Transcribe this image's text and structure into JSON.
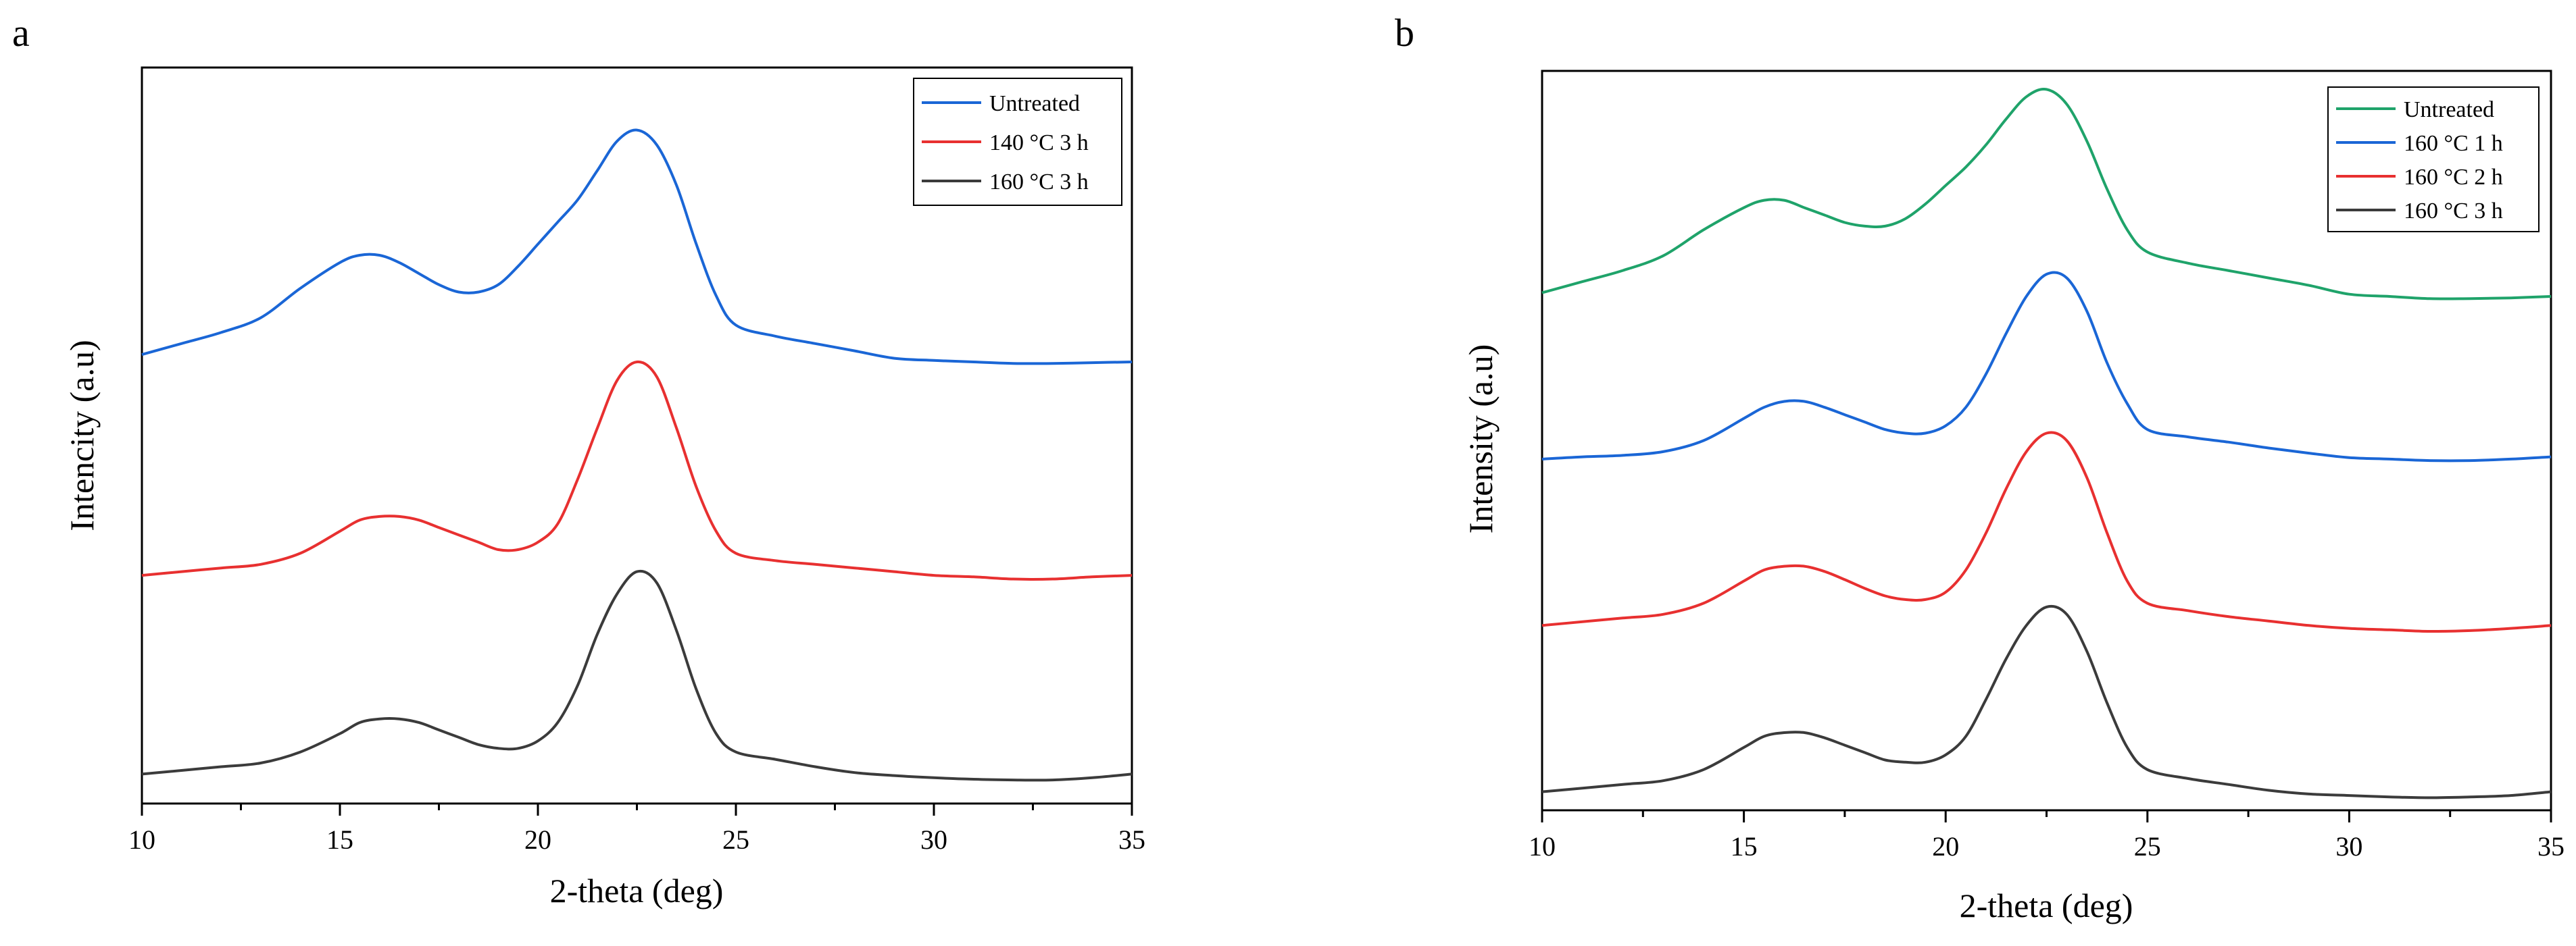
{
  "chart_data": [
    {
      "panel": "a",
      "type": "line",
      "xlabel": "2-theta (deg)",
      "ylabel": "Intencity (a.u)",
      "xlim": [
        10,
        35
      ],
      "ylim": [
        0,
        100
      ],
      "xticks": [
        10,
        15,
        20,
        25,
        30,
        35
      ],
      "x_minor_step": 2.5,
      "legend_position": "top-right",
      "series": [
        {
          "name": "Untreated",
          "color": "#1a66d6",
          "x": [
            10,
            11,
            12,
            13,
            14,
            15,
            15.5,
            16,
            16.5,
            17,
            17.5,
            18,
            18.5,
            19,
            19.5,
            20,
            20.5,
            21,
            21.5,
            22,
            22.5,
            23,
            23.5,
            24,
            24.5,
            25,
            26,
            27,
            28,
            29,
            30,
            31,
            32,
            33,
            34,
            35
          ],
          "y": [
            61,
            62.5,
            64,
            66,
            70,
            73.5,
            74.5,
            74.5,
            73.5,
            72,
            70.5,
            69.5,
            69.5,
            70.5,
            73,
            76,
            79,
            82,
            86,
            90,
            91.5,
            89.5,
            84,
            76,
            69,
            65,
            63.5,
            62.5,
            61.5,
            60.5,
            60.2,
            60,
            59.8,
            59.8,
            59.9,
            60
          ]
        },
        {
          "name": "140 °C 3 h",
          "color": "#e83030",
          "x": [
            10,
            11,
            12,
            13,
            14,
            15,
            15.5,
            16,
            16.5,
            17,
            17.5,
            18,
            18.5,
            19,
            19.5,
            20,
            20.5,
            21,
            21.5,
            22,
            22.5,
            23,
            23.5,
            24,
            24.5,
            25,
            26,
            27,
            28,
            29,
            30,
            31,
            32,
            33,
            34,
            35
          ],
          "y": [
            31,
            31.5,
            32,
            32.5,
            34,
            37,
            38.5,
            39,
            39,
            38.5,
            37.5,
            36.5,
            35.5,
            34.5,
            34.5,
            35.5,
            38,
            44,
            51,
            57.5,
            60,
            58,
            51,
            43,
            37,
            34,
            33,
            32.5,
            32,
            31.5,
            31,
            30.8,
            30.5,
            30.5,
            30.8,
            31
          ]
        },
        {
          "name": "160 °C 3 h",
          "color": "#3b3b3b",
          "x": [
            10,
            11,
            12,
            13,
            14,
            15,
            15.5,
            16,
            16.5,
            17,
            17.5,
            18,
            18.5,
            19,
            19.5,
            20,
            20.5,
            21,
            21.5,
            22,
            22.5,
            23,
            23.5,
            24,
            24.5,
            25,
            26,
            27,
            28,
            29,
            30,
            31,
            32,
            33,
            34,
            35
          ],
          "y": [
            4,
            4.5,
            5,
            5.5,
            7,
            9.5,
            11,
            11.5,
            11.5,
            11,
            10,
            9,
            8,
            7.5,
            7.5,
            8.5,
            11,
            16,
            23,
            28.5,
            31.5,
            30,
            23.5,
            15.5,
            9.5,
            7,
            6,
            5,
            4.2,
            3.8,
            3.5,
            3.3,
            3.2,
            3.2,
            3.5,
            4
          ]
        }
      ]
    },
    {
      "panel": "b",
      "type": "line",
      "xlabel": "2-theta (deg)",
      "ylabel": "Intensity (a.u)",
      "xlim": [
        10,
        35
      ],
      "ylim": [
        0,
        100
      ],
      "xticks": [
        10,
        15,
        20,
        25,
        30,
        35
      ],
      "x_minor_step": 2.5,
      "legend_position": "top-right",
      "series": [
        {
          "name": "Untreated",
          "color": "#1fa36a",
          "x": [
            10,
            11,
            12,
            13,
            14,
            15,
            15.5,
            16,
            16.5,
            17,
            17.5,
            18,
            18.5,
            19,
            19.5,
            20,
            20.5,
            21,
            21.5,
            22,
            22.5,
            23,
            23.5,
            24,
            24.5,
            25,
            26,
            27,
            28,
            29,
            30,
            31,
            32,
            33,
            34,
            35
          ],
          "y": [
            70,
            71.5,
            73,
            75,
            78.5,
            81.5,
            82.5,
            82.5,
            81.5,
            80.5,
            79.5,
            79,
            79,
            80,
            82,
            84.5,
            87,
            90,
            93.5,
            96.5,
            97.5,
            95.5,
            90.5,
            84,
            78.5,
            75.5,
            74,
            73,
            72,
            71,
            69.8,
            69.5,
            69.2,
            69.2,
            69.3,
            69.5
          ]
        },
        {
          "name": "160 °C 1 h",
          "color": "#1a66d6",
          "x": [
            10,
            11,
            12,
            13,
            14,
            15,
            15.5,
            16,
            16.5,
            17,
            17.5,
            18,
            18.5,
            19,
            19.5,
            20,
            20.5,
            21,
            21.5,
            22,
            22.5,
            23,
            23.5,
            24,
            24.5,
            25,
            26,
            27,
            28,
            29,
            30,
            31,
            32,
            33,
            34,
            35
          ],
          "y": [
            47.5,
            47.8,
            48,
            48.5,
            50,
            53,
            54.5,
            55.3,
            55.3,
            54.5,
            53.5,
            52.5,
            51.5,
            51,
            51,
            52,
            54.5,
            59,
            64.5,
            69.5,
            72.5,
            72,
            67.5,
            60.5,
            55,
            51.5,
            50.5,
            49.8,
            49,
            48.3,
            47.7,
            47.5,
            47.3,
            47.3,
            47.5,
            47.8
          ]
        },
        {
          "name": "160 °C 2 h",
          "color": "#e83030",
          "x": [
            10,
            11,
            12,
            13,
            14,
            15,
            15.5,
            16,
            16.5,
            17,
            17.5,
            18,
            18.5,
            19,
            19.5,
            20,
            20.5,
            21,
            21.5,
            22,
            22.5,
            23,
            23.5,
            24,
            24.5,
            25,
            26,
            27,
            28,
            29,
            30,
            31,
            32,
            33,
            34,
            35
          ],
          "y": [
            25,
            25.5,
            26,
            26.5,
            28,
            31,
            32.5,
            33,
            33,
            32.3,
            31.2,
            30,
            29,
            28.5,
            28.5,
            29.5,
            32.5,
            37.5,
            43.5,
            48.5,
            51,
            50,
            45,
            37.5,
            31,
            28,
            27,
            26.2,
            25.6,
            25,
            24.6,
            24.4,
            24.2,
            24.3,
            24.6,
            25
          ]
        },
        {
          "name": "160 °C 3 h",
          "color": "#3b3b3b",
          "x": [
            10,
            11,
            12,
            13,
            14,
            15,
            15.5,
            16,
            16.5,
            17,
            17.5,
            18,
            18.5,
            19,
            19.5,
            20,
            20.5,
            21,
            21.5,
            22,
            22.5,
            23,
            23.5,
            24,
            24.5,
            25,
            26,
            27,
            28,
            29,
            30,
            31,
            32,
            33,
            34,
            35
          ],
          "y": [
            2.5,
            3,
            3.5,
            4,
            5.5,
            8.5,
            10,
            10.5,
            10.5,
            9.8,
            8.8,
            7.8,
            6.8,
            6.5,
            6.5,
            7.5,
            10,
            15,
            20.5,
            25,
            27.5,
            26.5,
            21.5,
            14.5,
            8.5,
            5.5,
            4.3,
            3.5,
            2.7,
            2.2,
            2,
            1.8,
            1.7,
            1.8,
            2,
            2.5
          ]
        }
      ]
    }
  ]
}
